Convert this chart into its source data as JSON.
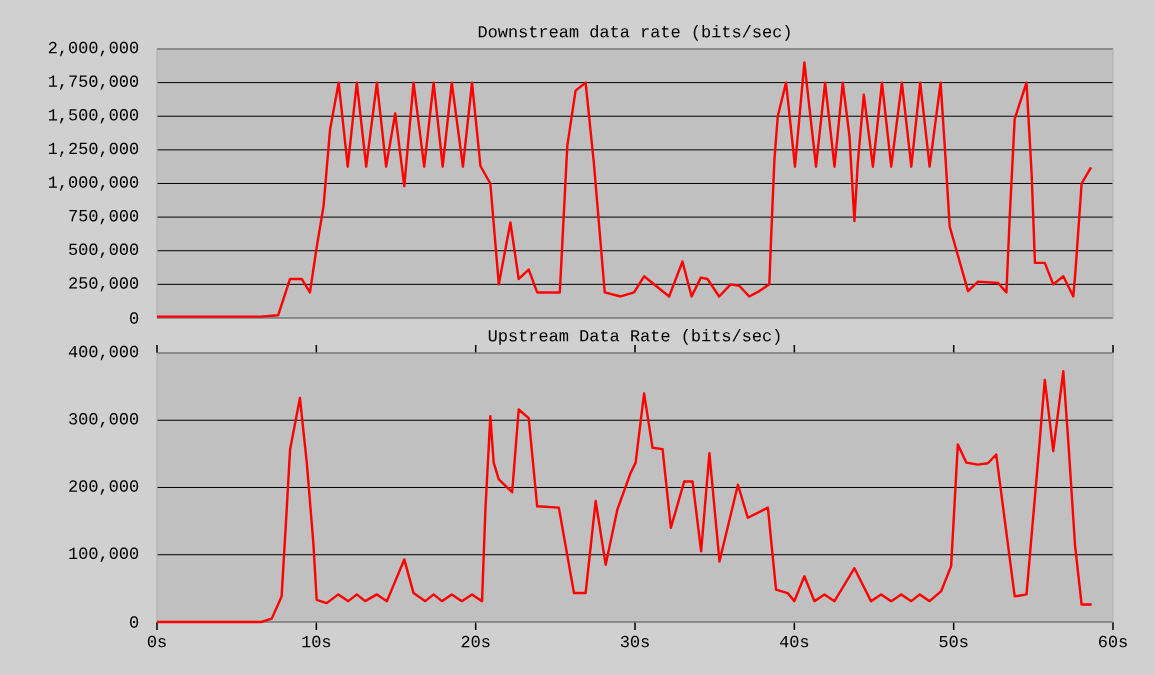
{
  "chart_data": [
    {
      "type": "line",
      "title": "Downstream data rate (bits/sec)",
      "color": "#ff0000",
      "grid": "y",
      "tick_labels": "y",
      "xlim": [
        0,
        60
      ],
      "ylim": [
        0,
        2000000
      ],
      "yticks": [
        {
          "value": 0,
          "label": "0"
        },
        {
          "value": 250000,
          "label": "250,000"
        },
        {
          "value": 500000,
          "label": "500,000"
        },
        {
          "value": 750000,
          "label": "750,000"
        },
        {
          "value": 1000000,
          "label": "1,000,000"
        },
        {
          "value": 1250000,
          "label": "1,250,000"
        },
        {
          "value": 1500000,
          "label": "1,500,000"
        },
        {
          "value": 1750000,
          "label": "1,750,000"
        },
        {
          "value": 2000000,
          "label": "2,000,000"
        }
      ],
      "x": [
        0,
        6.5,
        7.6,
        8.35,
        9.08,
        9.6,
        10.0,
        10.45,
        10.86,
        11.4,
        11.97,
        12.54,
        13.13,
        13.8,
        14.38,
        14.95,
        15.52,
        16.1,
        16.77,
        17.36,
        17.93,
        18.5,
        19.2,
        19.77,
        20.3,
        20.92,
        21.45,
        22.18,
        22.7,
        23.33,
        23.86,
        25.28,
        25.75,
        26.27,
        26.9,
        27.42,
        28.1,
        29.1,
        29.94,
        30.57,
        32.14,
        32.98,
        33.55,
        34.13,
        34.55,
        35.28,
        36.0,
        36.54,
        37.17,
        37.8,
        38.43,
        38.53,
        38.75,
        38.96,
        39.48,
        40.04,
        40.63,
        41.36,
        41.93,
        42.52,
        43.04,
        43.46,
        43.77,
        43.98,
        44.36,
        44.93,
        45.5,
        46.08,
        46.75,
        47.34,
        47.9,
        48.49,
        49.18,
        49.48,
        49.75,
        50.9,
        51.53,
        52.79,
        53.31,
        53.52,
        53.83,
        54.57,
        54.89,
        55.1,
        55.72,
        56.25,
        56.88,
        57.51,
        57.65,
        58.03,
        58.62
      ],
      "values": [
        10000,
        10000,
        20000,
        290000,
        290000,
        190000,
        510000,
        830000,
        1400000,
        1750000,
        1125000,
        1750000,
        1125000,
        1750000,
        1125000,
        1520000,
        980000,
        1750000,
        1125000,
        1750000,
        1125000,
        1750000,
        1125000,
        1750000,
        1130000,
        1000000,
        250000,
        710000,
        290000,
        360000,
        190000,
        190000,
        1280000,
        1690000,
        1750000,
        1150000,
        190000,
        160000,
        190000,
        310000,
        160000,
        420000,
        160000,
        300000,
        290000,
        160000,
        250000,
        240000,
        160000,
        200000,
        250000,
        560000,
        1180000,
        1500000,
        1750000,
        1125000,
        1900000,
        1125000,
        1750000,
        1125000,
        1750000,
        1350000,
        720000,
        1150000,
        1660000,
        1125000,
        1750000,
        1125000,
        1750000,
        1125000,
        1750000,
        1125000,
        1750000,
        1200000,
        680000,
        200000,
        270000,
        260000,
        190000,
        760000,
        1480000,
        1750000,
        1080000,
        410000,
        410000,
        250000,
        310000,
        160000,
        360000,
        1000000,
        1120000
      ]
    },
    {
      "type": "line",
      "title": "Upstream Data Rate (bits/sec)",
      "color": "#ff0000",
      "grid": "y",
      "xlim": [
        0,
        60
      ],
      "ylim": [
        0,
        400000
      ],
      "xticks": [
        {
          "value": 0,
          "label": "0s"
        },
        {
          "value": 10,
          "label": "10s"
        },
        {
          "value": 20,
          "label": "20s"
        },
        {
          "value": 30,
          "label": "30s"
        },
        {
          "value": 40,
          "label": "40s"
        },
        {
          "value": 50,
          "label": "50s"
        },
        {
          "value": 60,
          "label": "60s"
        }
      ],
      "yticks": [
        {
          "value": 0,
          "label": "0"
        },
        {
          "value": 100000,
          "label": "100,000"
        },
        {
          "value": 200000,
          "label": "200,000"
        },
        {
          "value": 300000,
          "label": "300,000"
        },
        {
          "value": 400000,
          "label": "400,000"
        }
      ],
      "x": [
        0,
        6.56,
        7.2,
        7.82,
        8.14,
        8.35,
        8.97,
        9.4,
        9.81,
        10.02,
        10.65,
        11.38,
        12.01,
        12.54,
        13.06,
        13.8,
        14.43,
        15.52,
        16.1,
        16.84,
        17.36,
        17.88,
        18.5,
        19.13,
        19.77,
        20.4,
        20.61,
        20.92,
        21.13,
        21.45,
        22.29,
        22.7,
        23.33,
        23.86,
        25.22,
        26.17,
        26.9,
        27.53,
        28.16,
        28.89,
        29.73,
        30.04,
        30.57,
        31.1,
        31.73,
        32.25,
        33.09,
        33.61,
        34.15,
        34.67,
        35.3,
        36.46,
        37.08,
        38.34,
        38.85,
        39.58,
        40.0,
        40.63,
        41.26,
        41.89,
        42.52,
        43.77,
        44.81,
        45.45,
        46.08,
        46.71,
        47.34,
        47.87,
        48.49,
        49.22,
        49.84,
        50.26,
        50.79,
        51.52,
        52.15,
        52.67,
        53.83,
        54.57,
        55.3,
        55.72,
        56.25,
        56.88,
        57.2,
        57.62,
        58.03,
        58.66
      ],
      "values": [
        0,
        0,
        5000,
        38000,
        167000,
        256000,
        333000,
        237000,
        118000,
        33000,
        28000,
        41000,
        31000,
        41000,
        31000,
        41000,
        31000,
        93000,
        43000,
        31000,
        41000,
        31000,
        41000,
        31000,
        41000,
        31000,
        167000,
        306000,
        237000,
        212000,
        193000,
        316000,
        303000,
        172000,
        170000,
        43000,
        43000,
        180000,
        85000,
        167000,
        222000,
        237000,
        340000,
        259000,
        257000,
        140000,
        209000,
        209000,
        105000,
        251000,
        90000,
        204000,
        155000,
        170000,
        48000,
        43000,
        31000,
        68000,
        31000,
        41000,
        31000,
        80000,
        31000,
        41000,
        31000,
        41000,
        31000,
        41000,
        31000,
        46000,
        83000,
        264000,
        237000,
        234000,
        236000,
        249000,
        38000,
        41000,
        241000,
        360000,
        254000,
        373000,
        266000,
        113000,
        26000,
        26000
      ]
    }
  ]
}
